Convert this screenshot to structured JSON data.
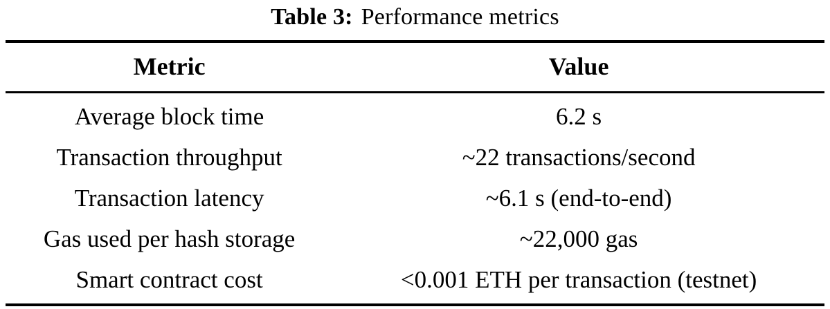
{
  "caption": {
    "label": "Table 3:",
    "title": "Performance metrics"
  },
  "table": {
    "headers": [
      "Metric",
      "Value"
    ],
    "rows": [
      {
        "metric": "Average block time",
        "value": "6.2 s"
      },
      {
        "metric": "Transaction throughput",
        "value": "~22 transactions/second"
      },
      {
        "metric": "Transaction latency",
        "value": "~6.1 s (end-to-end)"
      },
      {
        "metric": "Gas used per hash storage",
        "value": "~22,000 gas"
      },
      {
        "metric": "Smart contract cost",
        "value": "<0.001 ETH per transaction (testnet)"
      }
    ]
  },
  "colors": {
    "background": "#ffffff",
    "text": "#000000",
    "rule": "#000000"
  }
}
